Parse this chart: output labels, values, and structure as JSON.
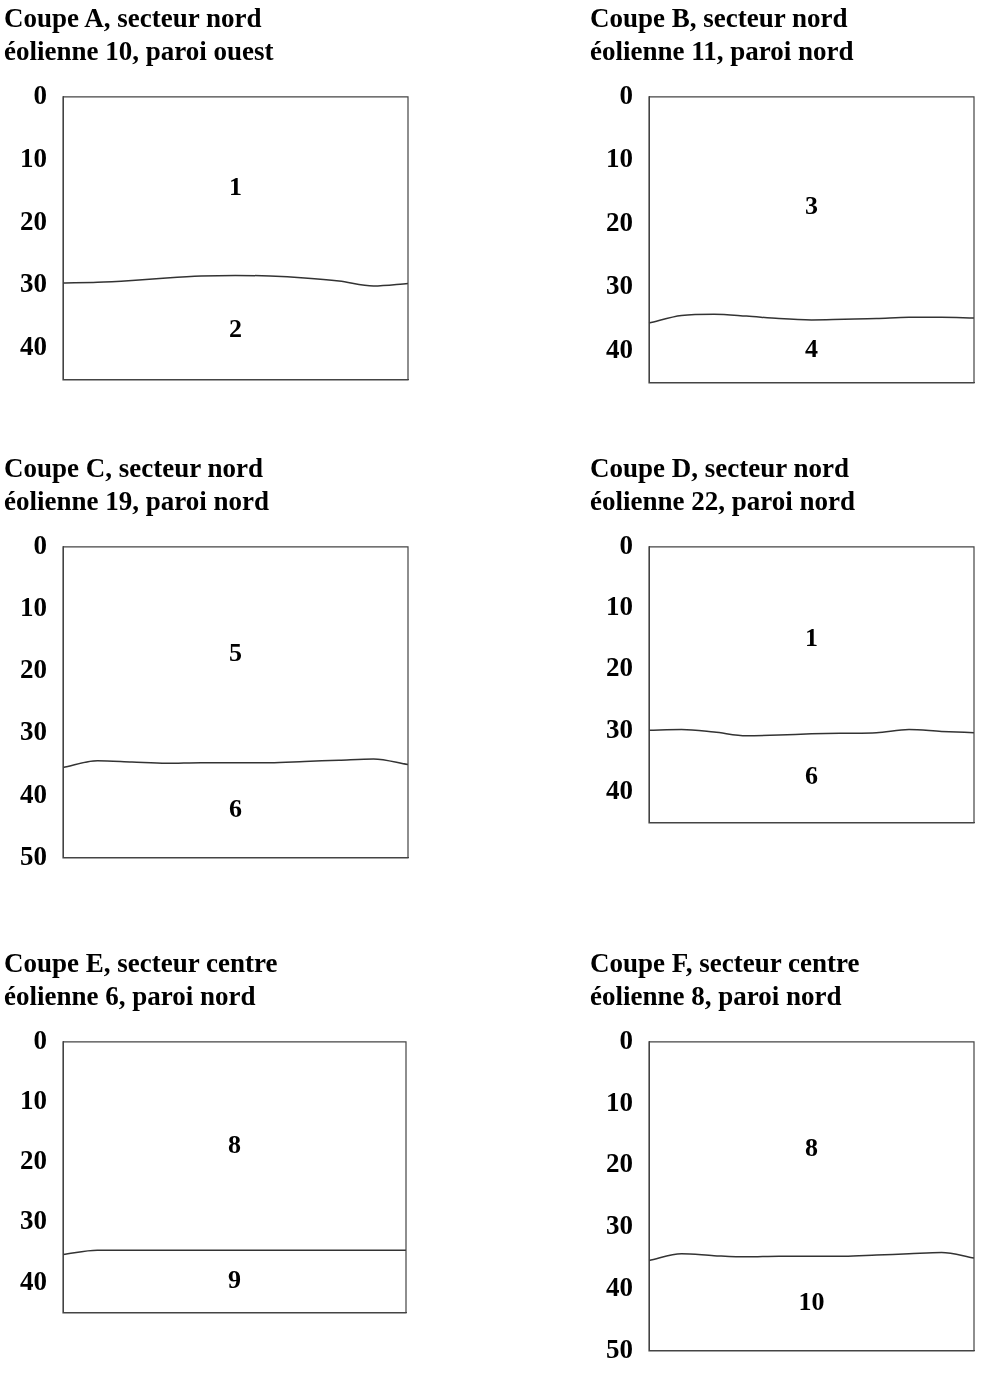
{
  "chart_data": [
    {
      "type": "line",
      "title": "Coupe A, secteur nord",
      "subtitle": "éolienne 10, paroi ouest",
      "categories": [
        null,
        null,
        null,
        null,
        null,
        null,
        null,
        null,
        null,
        null,
        null
      ],
      "series": [
        {
          "color": "#333333",
          "values": [
            29.6,
            29.5,
            29.2,
            28.8,
            28.5,
            28.4,
            28.5,
            28.8,
            29.3,
            30.1,
            29.7
          ]
        }
      ],
      "ylim": [
        45,
        0
      ],
      "yticks": [
        0,
        10,
        20,
        30,
        40
      ],
      "tick_labels": "y",
      "marker": "none",
      "annotations": [
        "1",
        "2"
      ]
    },
    {
      "type": "line",
      "title": "Coupe B, secteur nord",
      "subtitle": "éolienne 11, paroi nord",
      "categories": [
        null,
        null,
        null,
        null,
        null,
        null,
        null,
        null,
        null,
        null,
        null
      ],
      "series": [
        {
          "color": "#333333",
          "values": [
            35.6,
            34.4,
            34.2,
            34.5,
            34.9,
            35.1,
            35.0,
            34.9,
            34.7,
            34.7,
            34.8
          ]
        }
      ],
      "ylim": [
        45,
        0
      ],
      "yticks": [
        0,
        10,
        20,
        30,
        40
      ],
      "tick_labels": "y",
      "marker": "none",
      "annotations": [
        "3",
        "4"
      ]
    },
    {
      "type": "line",
      "title": "Coupe C, secteur nord",
      "subtitle": "éolienne 19, paroi nord",
      "categories": [
        null,
        null,
        null,
        null,
        null,
        null,
        null,
        null,
        null,
        null,
        null
      ],
      "series": [
        {
          "color": "#333333",
          "values": [
            35.5,
            34.4,
            34.6,
            34.8,
            34.7,
            34.7,
            34.7,
            34.5,
            34.3,
            34.1,
            35.0
          ]
        }
      ],
      "ylim": [
        50,
        0
      ],
      "yticks": [
        0,
        10,
        20,
        30,
        40,
        50
      ],
      "tick_labels": "y",
      "marker": "none",
      "annotations": [
        "5",
        "6"
      ]
    },
    {
      "type": "line",
      "title": "Coupe D, secteur nord",
      "subtitle": "éolienne 22, paroi nord",
      "categories": [
        null,
        null,
        null,
        null,
        null,
        null,
        null,
        null,
        null,
        null,
        null
      ],
      "series": [
        {
          "color": "#333333",
          "values": [
            29.9,
            29.8,
            30.2,
            30.8,
            30.7,
            30.5,
            30.4,
            30.3,
            29.8,
            30.1,
            30.3
          ]
        }
      ],
      "ylim": [
        45,
        0
      ],
      "yticks": [
        0,
        10,
        20,
        30,
        40
      ],
      "tick_labels": "y",
      "marker": "none",
      "annotations": [
        "1",
        "6"
      ]
    },
    {
      "type": "line",
      "title": "Coupe E, secteur centre",
      "subtitle": "éolienne 6, paroi nord",
      "categories": [
        null,
        null,
        null,
        null,
        null,
        null,
        null,
        null,
        null,
        null,
        null
      ],
      "series": [
        {
          "color": "#333333",
          "values": [
            35.3,
            34.6,
            34.6,
            34.6,
            34.6,
            34.6,
            34.6,
            34.6,
            34.6,
            34.6,
            34.6
          ]
        }
      ],
      "ylim": [
        45,
        0
      ],
      "yticks": [
        0,
        10,
        20,
        30,
        40
      ],
      "tick_labels": "y",
      "marker": "none",
      "annotations": [
        "8",
        "9"
      ]
    },
    {
      "type": "line",
      "title": "Coupe F, secteur centre",
      "subtitle": "éolienne 8, paroi nord",
      "categories": [
        null,
        null,
        null,
        null,
        null,
        null,
        null,
        null,
        null,
        null,
        null
      ],
      "series": [
        {
          "color": "#333333",
          "values": [
            35.4,
            34.3,
            34.6,
            34.8,
            34.7,
            34.7,
            34.7,
            34.5,
            34.3,
            34.1,
            35.0
          ]
        }
      ],
      "ylim": [
        50,
        0
      ],
      "yticks": [
        0,
        10,
        20,
        30,
        40,
        50
      ],
      "tick_labels": "y",
      "marker": "none",
      "annotations": [
        "8",
        "10"
      ]
    }
  ]
}
